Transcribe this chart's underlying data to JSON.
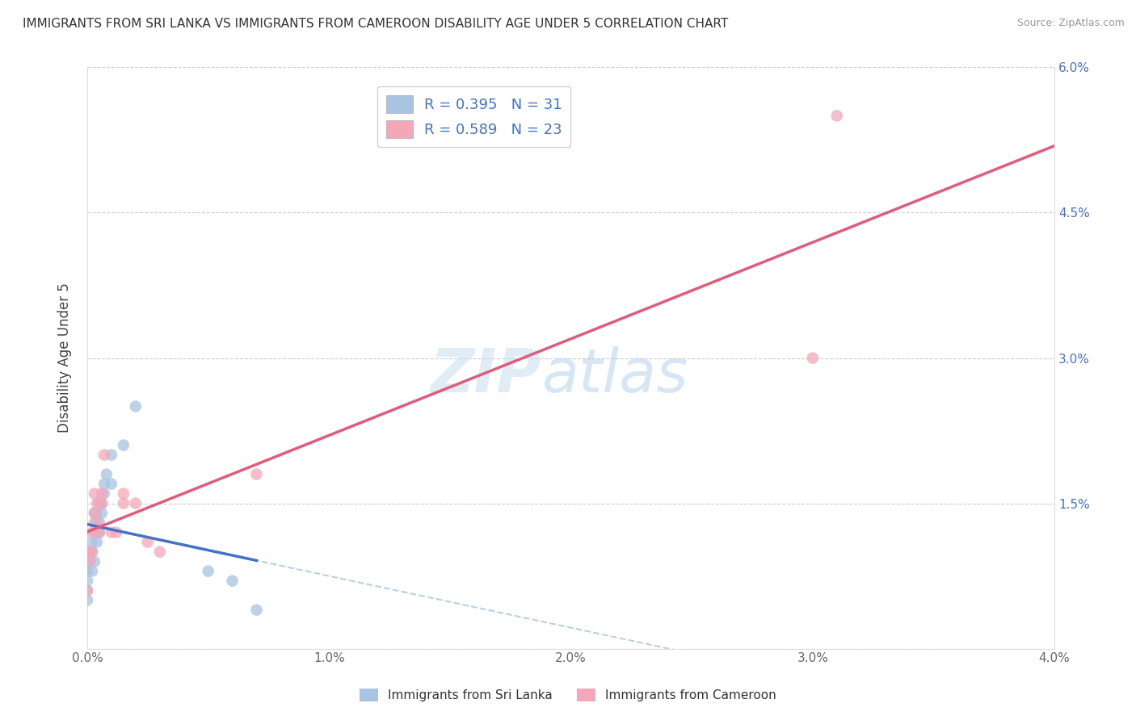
{
  "title": "IMMIGRANTS FROM SRI LANKA VS IMMIGRANTS FROM CAMEROON DISABILITY AGE UNDER 5 CORRELATION CHART",
  "source": "Source: ZipAtlas.com",
  "ylabel": "Disability Age Under 5",
  "xlim": [
    0,
    0.04
  ],
  "ylim": [
    0,
    0.06
  ],
  "xticks": [
    0.0,
    0.01,
    0.02,
    0.03,
    0.04
  ],
  "xticklabels": [
    "0.0%",
    "1.0%",
    "2.0%",
    "3.0%",
    "4.0%"
  ],
  "yticks": [
    0.0,
    0.015,
    0.03,
    0.045,
    0.06
  ],
  "yticklabels_right": [
    "",
    "1.5%",
    "3.0%",
    "4.5%",
    "6.0%"
  ],
  "sri_lanka_color": "#a8c4e0",
  "cameroon_color": "#f4a7b9",
  "sri_lanka_line_color": "#4472c4",
  "cameroon_line_color": "#e05c7a",
  "dashed_line_color": "#a8c4e0",
  "legend_label_sl": "R = 0.395   N = 31",
  "legend_label_cam": "R = 0.589   N = 23",
  "bottom_label_sl": "Immigrants from Sri Lanka",
  "bottom_label_cam": "Immigrants from Cameroon",
  "watermark_zip": "ZIP",
  "watermark_atlas": "atlas",
  "title_fontsize": 11,
  "tick_fontsize": 11,
  "legend_fontsize": 13,
  "marker_size": 110,
  "sl_x": [
    0.0,
    0.0,
    0.0,
    0.0,
    0.0001,
    0.0001,
    0.0002,
    0.0002,
    0.0002,
    0.0003,
    0.0003,
    0.0003,
    0.0003,
    0.0004,
    0.0004,
    0.0004,
    0.0005,
    0.0005,
    0.0005,
    0.0006,
    0.0006,
    0.0007,
    0.0007,
    0.0008,
    0.001,
    0.001,
    0.0015,
    0.002,
    0.005,
    0.006,
    0.007
  ],
  "sl_y": [
    0.005,
    0.006,
    0.007,
    0.008,
    0.009,
    0.01,
    0.008,
    0.01,
    0.011,
    0.009,
    0.012,
    0.013,
    0.014,
    0.011,
    0.012,
    0.014,
    0.012,
    0.013,
    0.015,
    0.014,
    0.015,
    0.016,
    0.017,
    0.018,
    0.017,
    0.02,
    0.021,
    0.025,
    0.008,
    0.007,
    0.004
  ],
  "cam_x": [
    0.0,
    0.0001,
    0.0001,
    0.0002,
    0.0002,
    0.0003,
    0.0003,
    0.0004,
    0.0004,
    0.0005,
    0.0006,
    0.0006,
    0.0007,
    0.001,
    0.0012,
    0.0015,
    0.0015,
    0.002,
    0.0025,
    0.003,
    0.007,
    0.03,
    0.031
  ],
  "cam_y": [
    0.006,
    0.009,
    0.01,
    0.01,
    0.012,
    0.014,
    0.016,
    0.013,
    0.015,
    0.012,
    0.015,
    0.016,
    0.02,
    0.012,
    0.012,
    0.015,
    0.016,
    0.015,
    0.011,
    0.01,
    0.018,
    0.03,
    0.055
  ]
}
